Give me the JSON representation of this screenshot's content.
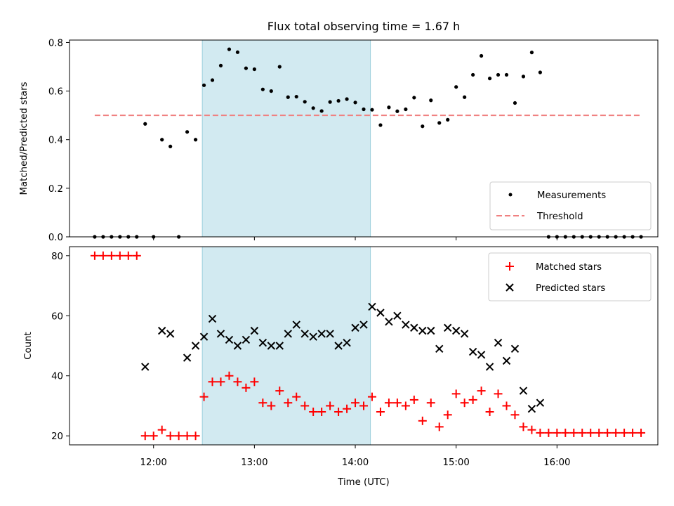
{
  "chart_data": [
    {
      "type": "scatter",
      "title": "Flux total observing time = 1.67 h",
      "xlabel": "",
      "ylabel": "Matched/Predicted stars",
      "ylim": [
        0,
        0.81
      ],
      "yticks": [
        "0.0",
        "0.2",
        "0.4",
        "0.6",
        "0.8"
      ],
      "ytick_values": [
        0,
        0.2,
        0.4,
        0.6,
        0.8
      ],
      "xlim": [
        "11:10",
        "17:00"
      ],
      "xticks": [
        "12:00",
        "13:00",
        "14:00",
        "15:00",
        "16:00"
      ],
      "shaded_interval": [
        "12:29",
        "14:09"
      ],
      "shade_color": "#add8e6",
      "legend_position": "lower right",
      "series": [
        {
          "name": "Measurements",
          "kind": "scatter-dot",
          "color": "#000000",
          "points": [
            [
              "11:25",
              0.0
            ],
            [
              "11:30",
              0.0
            ],
            [
              "11:35",
              0.0
            ],
            [
              "11:40",
              0.0
            ],
            [
              "11:45",
              0.0
            ],
            [
              "11:50",
              0.0
            ],
            [
              "11:55",
              0.465
            ],
            [
              "12:00",
              0.0
            ],
            [
              "12:05",
              0.4
            ],
            [
              "12:10",
              0.372
            ],
            [
              "12:15",
              0.0
            ],
            [
              "12:20",
              0.432
            ],
            [
              "12:25",
              0.4
            ],
            [
              "12:30",
              0.624
            ],
            [
              "12:35",
              0.645
            ],
            [
              "12:40",
              0.705
            ],
            [
              "12:45",
              0.772
            ],
            [
              "12:50",
              0.76
            ],
            [
              "12:55",
              0.694
            ],
            [
              "13:00",
              0.69
            ],
            [
              "13:05",
              0.607
            ],
            [
              "13:10",
              0.6
            ],
            [
              "13:15",
              0.7
            ],
            [
              "13:20",
              0.575
            ],
            [
              "13:25",
              0.577
            ],
            [
              "13:30",
              0.556
            ],
            [
              "13:35",
              0.53
            ],
            [
              "13:40",
              0.518
            ],
            [
              "13:45",
              0.555
            ],
            [
              "13:50",
              0.56
            ],
            [
              "13:55",
              0.567
            ],
            [
              "14:00",
              0.553
            ],
            [
              "14:05",
              0.525
            ],
            [
              "14:10",
              0.523
            ],
            [
              "14:15",
              0.46
            ],
            [
              "14:20",
              0.533
            ],
            [
              "14:25",
              0.517
            ],
            [
              "14:30",
              0.525
            ],
            [
              "14:35",
              0.573
            ],
            [
              "14:40",
              0.455
            ],
            [
              "14:45",
              0.562
            ],
            [
              "14:50",
              0.469
            ],
            [
              "14:55",
              0.482
            ],
            [
              "15:00",
              0.617
            ],
            [
              "15:05",
              0.575
            ],
            [
              "15:10",
              0.667
            ],
            [
              "15:15",
              0.745
            ],
            [
              "15:20",
              0.652
            ],
            [
              "15:25",
              0.667
            ],
            [
              "15:30",
              0.667
            ],
            [
              "15:35",
              0.551
            ],
            [
              "15:40",
              0.66
            ],
            [
              "15:45",
              0.759
            ],
            [
              "15:50",
              0.677
            ],
            [
              "15:55",
              0.0
            ],
            [
              "16:00",
              0.0
            ],
            [
              "16:05",
              0.0
            ],
            [
              "16:10",
              0.0
            ],
            [
              "16:15",
              0.0
            ],
            [
              "16:20",
              0.0
            ],
            [
              "16:25",
              0.0
            ],
            [
              "16:30",
              0.0
            ],
            [
              "16:35",
              0.0
            ],
            [
              "16:40",
              0.0
            ],
            [
              "16:45",
              0.0
            ],
            [
              "16:50",
              0.0
            ]
          ]
        },
        {
          "name": "Threshold",
          "kind": "dashed-line",
          "color": "#f08080",
          "x": [
            "11:25",
            "16:50"
          ],
          "y": 0.5
        }
      ]
    },
    {
      "type": "scatter",
      "title": "",
      "xlabel": "Time (UTC)",
      "ylabel": "Count",
      "ylim": [
        17,
        83
      ],
      "yticks": [
        "20",
        "40",
        "60",
        "80"
      ],
      "ytick_values": [
        20,
        40,
        60,
        80
      ],
      "xlim": [
        "11:10",
        "17:00"
      ],
      "xticks": [
        "12:00",
        "13:00",
        "14:00",
        "15:00",
        "16:00"
      ],
      "shaded_interval": [
        "12:29",
        "14:09"
      ],
      "shade_color": "#add8e6",
      "legend_position": "upper right",
      "series": [
        {
          "name": "Matched stars",
          "kind": "plus",
          "color": "#ff0000",
          "points": [
            [
              "11:25",
              80
            ],
            [
              "11:30",
              80
            ],
            [
              "11:35",
              80
            ],
            [
              "11:40",
              80
            ],
            [
              "11:45",
              80
            ],
            [
              "11:50",
              80
            ],
            [
              "11:55",
              20
            ],
            [
              "12:00",
              20
            ],
            [
              "12:05",
              22
            ],
            [
              "12:10",
              20
            ],
            [
              "12:15",
              20
            ],
            [
              "12:20",
              20
            ],
            [
              "12:25",
              20
            ],
            [
              "12:30",
              33
            ],
            [
              "12:35",
              38
            ],
            [
              "12:40",
              38
            ],
            [
              "12:45",
              40
            ],
            [
              "12:50",
              38
            ],
            [
              "12:55",
              36
            ],
            [
              "13:00",
              38
            ],
            [
              "13:05",
              31
            ],
            [
              "13:10",
              30
            ],
            [
              "13:15",
              35
            ],
            [
              "13:20",
              31
            ],
            [
              "13:25",
              33
            ],
            [
              "13:30",
              30
            ],
            [
              "13:35",
              28
            ],
            [
              "13:40",
              28
            ],
            [
              "13:45",
              30
            ],
            [
              "13:50",
              28
            ],
            [
              "13:55",
              29
            ],
            [
              "14:00",
              31
            ],
            [
              "14:05",
              30
            ],
            [
              "14:10",
              33
            ],
            [
              "14:15",
              28
            ],
            [
              "14:20",
              31
            ],
            [
              "14:25",
              31
            ],
            [
              "14:30",
              30
            ],
            [
              "14:35",
              32
            ],
            [
              "14:40",
              25
            ],
            [
              "14:45",
              31
            ],
            [
              "14:50",
              23
            ],
            [
              "14:55",
              27
            ],
            [
              "15:00",
              34
            ],
            [
              "15:05",
              31
            ],
            [
              "15:10",
              32
            ],
            [
              "15:15",
              35
            ],
            [
              "15:20",
              28
            ],
            [
              "15:25",
              34
            ],
            [
              "15:30",
              30
            ],
            [
              "15:35",
              27
            ],
            [
              "15:40",
              23
            ],
            [
              "15:45",
              22
            ],
            [
              "15:50",
              21
            ],
            [
              "15:55",
              21
            ],
            [
              "16:00",
              21
            ],
            [
              "16:05",
              21
            ],
            [
              "16:10",
              21
            ],
            [
              "16:15",
              21
            ],
            [
              "16:20",
              21
            ],
            [
              "16:25",
              21
            ],
            [
              "16:30",
              21
            ],
            [
              "16:35",
              21
            ],
            [
              "16:40",
              21
            ],
            [
              "16:45",
              21
            ],
            [
              "16:50",
              21
            ]
          ]
        },
        {
          "name": "Predicted stars",
          "kind": "x",
          "color": "#000000",
          "points": [
            [
              "11:55",
              43
            ],
            [
              "12:05",
              55
            ],
            [
              "12:10",
              54
            ],
            [
              "12:20",
              46
            ],
            [
              "12:25",
              50
            ],
            [
              "12:30",
              53
            ],
            [
              "12:35",
              59
            ],
            [
              "12:40",
              54
            ],
            [
              "12:45",
              52
            ],
            [
              "12:50",
              50
            ],
            [
              "12:55",
              52
            ],
            [
              "13:00",
              55
            ],
            [
              "13:05",
              51
            ],
            [
              "13:10",
              50
            ],
            [
              "13:15",
              50
            ],
            [
              "13:20",
              54
            ],
            [
              "13:25",
              57
            ],
            [
              "13:30",
              54
            ],
            [
              "13:35",
              53
            ],
            [
              "13:40",
              54
            ],
            [
              "13:45",
              54
            ],
            [
              "13:50",
              50
            ],
            [
              "13:55",
              51
            ],
            [
              "14:00",
              56
            ],
            [
              "14:05",
              57
            ],
            [
              "14:10",
              63
            ],
            [
              "14:15",
              61
            ],
            [
              "14:20",
              58
            ],
            [
              "14:25",
              60
            ],
            [
              "14:30",
              57
            ],
            [
              "14:35",
              56
            ],
            [
              "14:40",
              55
            ],
            [
              "14:45",
              55
            ],
            [
              "14:50",
              49
            ],
            [
              "14:55",
              56
            ],
            [
              "15:00",
              55
            ],
            [
              "15:05",
              54
            ],
            [
              "15:10",
              48
            ],
            [
              "15:15",
              47
            ],
            [
              "15:20",
              43
            ],
            [
              "15:25",
              51
            ],
            [
              "15:30",
              45
            ],
            [
              "15:35",
              49
            ],
            [
              "15:40",
              35
            ],
            [
              "15:45",
              29
            ],
            [
              "15:50",
              31
            ]
          ]
        }
      ]
    }
  ]
}
